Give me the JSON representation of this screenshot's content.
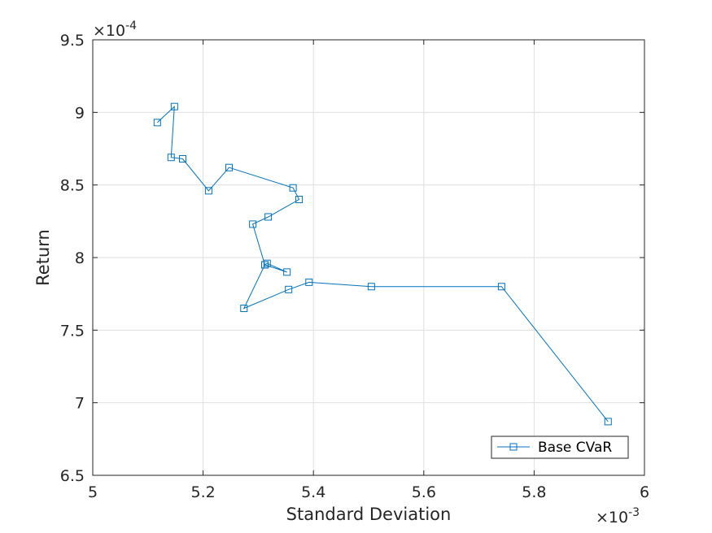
{
  "chart_data": {
    "type": "line",
    "title": "",
    "xlabel": "Standard Deviation",
    "ylabel": "Return",
    "x_multiplier": "×10",
    "x_exponent": "-3",
    "y_multiplier": "×10",
    "y_exponent": "-4",
    "xlim": [
      5,
      6
    ],
    "ylim": [
      6.5,
      9.5
    ],
    "x_ticks": [
      5,
      5.2,
      5.4,
      5.6,
      5.8,
      6
    ],
    "x_tick_labels": [
      "5",
      "5.2",
      "5.4",
      "5.6",
      "5.8",
      "6"
    ],
    "y_ticks": [
      6.5,
      7,
      7.5,
      8,
      8.5,
      9,
      9.5
    ],
    "y_tick_labels": [
      "6.5",
      "7",
      "7.5",
      "8",
      "8.5",
      "9",
      "9.5"
    ],
    "grid": true,
    "legend_position": "bottom-right",
    "series": [
      {
        "name": "Base CVaR",
        "color": "#0072BD",
        "marker": "square",
        "x": [
          5.117,
          5.148,
          5.142,
          5.163,
          5.21,
          5.247,
          5.363,
          5.374,
          5.318,
          5.29,
          5.312,
          5.316,
          5.352,
          5.312,
          5.274,
          5.355,
          5.392,
          5.505,
          5.741,
          5.934
        ],
        "y": [
          8.93,
          9.04,
          8.69,
          8.68,
          8.46,
          8.62,
          8.48,
          8.4,
          8.28,
          8.23,
          7.95,
          7.96,
          7.9,
          7.95,
          7.65,
          7.78,
          7.83,
          7.8,
          7.8,
          6.87
        ]
      }
    ]
  }
}
